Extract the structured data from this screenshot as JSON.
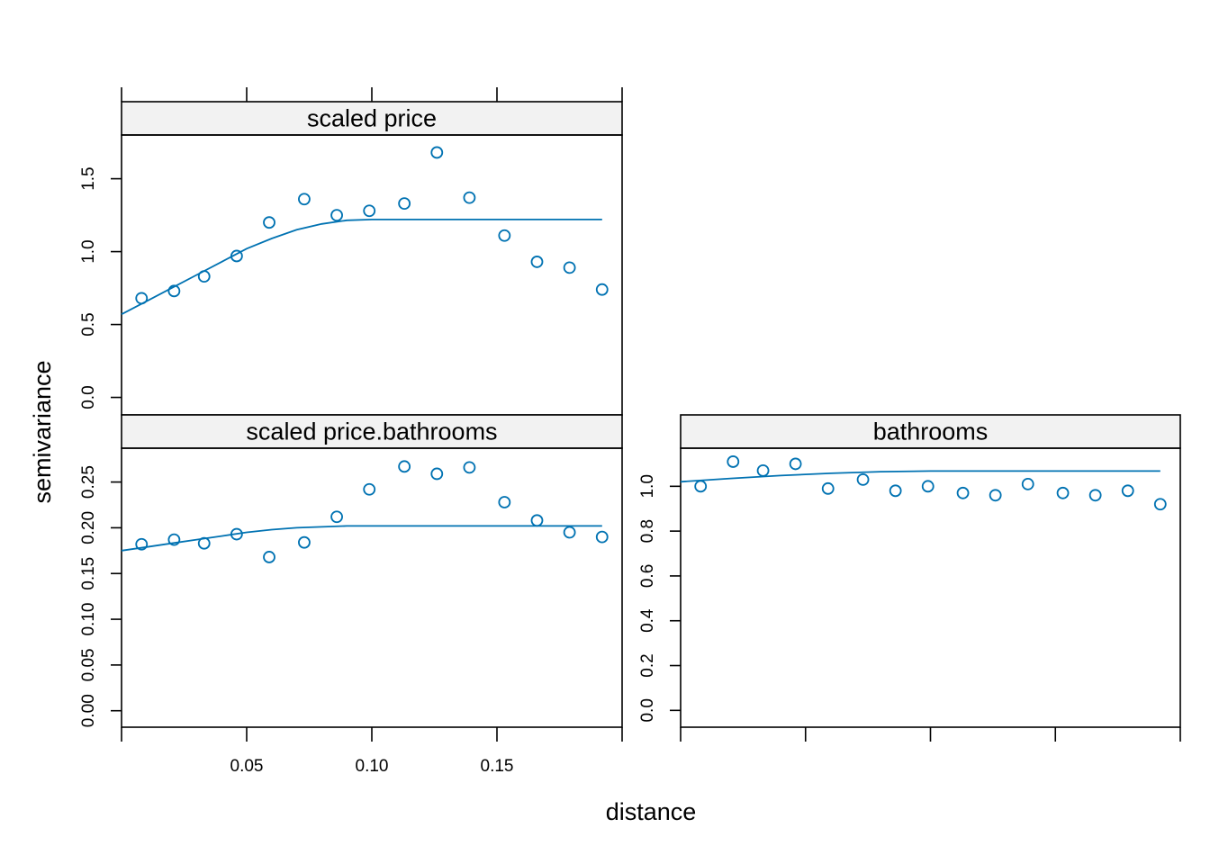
{
  "chart_data": {
    "type": "scatter",
    "xlabel": "distance",
    "ylabel": "semivariance",
    "colors": {
      "series": "#0072b2",
      "strip": "#f2f2f2"
    },
    "x_tick_labels": [
      "0.05",
      "0.10",
      "0.15"
    ],
    "panels": [
      {
        "id": "scaled-price",
        "title": "scaled price",
        "xlim": [
          0,
          0.2
        ],
        "ylim": [
          -0.12,
          1.8
        ],
        "y_ticks": [
          0.0,
          0.5,
          1.0,
          1.5
        ],
        "y_tick_labels": [
          "0.0",
          "0.5",
          "1.0",
          "1.5"
        ],
        "points": {
          "x": [
            0.008,
            0.021,
            0.033,
            0.046,
            0.059,
            0.073,
            0.086,
            0.099,
            0.113,
            0.126,
            0.139,
            0.153,
            0.166,
            0.179,
            0.192
          ],
          "y": [
            0.68,
            0.73,
            0.83,
            0.97,
            1.2,
            1.36,
            1.25,
            1.28,
            1.33,
            1.68,
            1.37,
            1.11,
            0.93,
            0.89,
            0.74
          ]
        },
        "fit": {
          "x": [
            0,
            0.01,
            0.02,
            0.03,
            0.04,
            0.05,
            0.06,
            0.07,
            0.08,
            0.09,
            0.1,
            0.12,
            0.14,
            0.16,
            0.18,
            0.192
          ],
          "y": [
            0.57,
            0.66,
            0.75,
            0.84,
            0.93,
            1.02,
            1.09,
            1.15,
            1.19,
            1.215,
            1.22,
            1.22,
            1.22,
            1.22,
            1.22,
            1.22
          ]
        }
      },
      {
        "id": "scaled-price-bathrooms",
        "title": "scaled price.bathrooms",
        "xlim": [
          0,
          0.2
        ],
        "ylim": [
          -0.018,
          0.287
        ],
        "y_ticks": [
          0.0,
          0.05,
          0.1,
          0.15,
          0.2,
          0.25
        ],
        "y_tick_labels": [
          "0.00",
          "0.05",
          "0.10",
          "0.15",
          "0.20",
          "0.25"
        ],
        "points": {
          "x": [
            0.008,
            0.021,
            0.033,
            0.046,
            0.059,
            0.073,
            0.086,
            0.099,
            0.113,
            0.126,
            0.139,
            0.153,
            0.166,
            0.179,
            0.192
          ],
          "y": [
            0.182,
            0.187,
            0.183,
            0.193,
            0.168,
            0.184,
            0.212,
            0.242,
            0.267,
            0.259,
            0.266,
            0.228,
            0.208,
            0.195,
            0.19
          ]
        },
        "fit": {
          "x": [
            0,
            0.01,
            0.02,
            0.03,
            0.04,
            0.05,
            0.06,
            0.07,
            0.08,
            0.09,
            0.1,
            0.12,
            0.14,
            0.16,
            0.18,
            0.192
          ],
          "y": [
            0.175,
            0.179,
            0.183,
            0.187,
            0.191,
            0.195,
            0.198,
            0.2,
            0.201,
            0.202,
            0.202,
            0.202,
            0.202,
            0.202,
            0.202,
            0.202
          ]
        }
      },
      {
        "id": "bathrooms",
        "title": "bathrooms",
        "xlim": [
          0,
          0.2
        ],
        "ylim": [
          -0.075,
          1.17
        ],
        "y_ticks": [
          0.0,
          0.2,
          0.4,
          0.6,
          0.8,
          1.0
        ],
        "y_tick_labels": [
          "0.0",
          "0.2",
          "0.4",
          "0.6",
          "0.8",
          "1.0"
        ],
        "points": {
          "x": [
            0.008,
            0.021,
            0.033,
            0.046,
            0.059,
            0.073,
            0.086,
            0.099,
            0.113,
            0.126,
            0.139,
            0.153,
            0.166,
            0.179,
            0.192
          ],
          "y": [
            1.0,
            1.11,
            1.07,
            1.1,
            0.99,
            1.03,
            0.98,
            1.0,
            0.97,
            0.96,
            1.01,
            0.97,
            0.96,
            0.98,
            0.92
          ]
        },
        "fit": {
          "x": [
            0,
            0.02,
            0.04,
            0.06,
            0.08,
            0.1,
            0.12,
            0.14,
            0.16,
            0.18,
            0.192
          ],
          "y": [
            1.02,
            1.035,
            1.048,
            1.058,
            1.065,
            1.068,
            1.068,
            1.068,
            1.068,
            1.068,
            1.068
          ]
        }
      }
    ]
  }
}
